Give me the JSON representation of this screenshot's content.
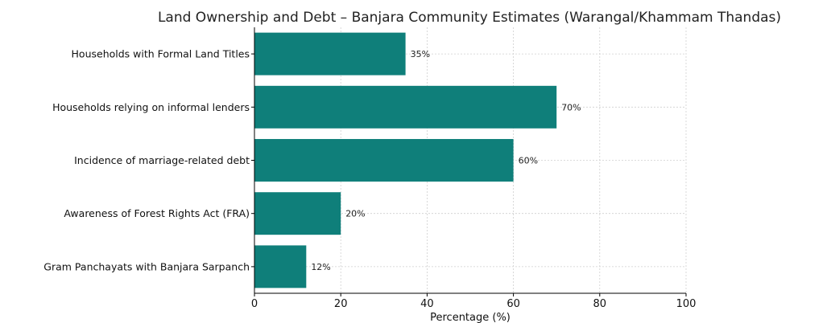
{
  "chart_data": {
    "type": "bar",
    "orientation": "horizontal",
    "title": "Land Ownership and Debt – Banjara Community Estimates (Warangal/Khammam Thandas)",
    "xlabel": "Percentage (%)",
    "ylabel": "",
    "xlim": [
      0,
      100
    ],
    "x_ticks": [
      0,
      20,
      40,
      60,
      80,
      100
    ],
    "grid": true,
    "bar_color": "#0f7f7a",
    "categories": [
      "Households with Formal Land Titles",
      "Households relying on informal lenders",
      "Incidence of marriage-related debt",
      "Awareness of Forest Rights Act (FRA)",
      "Gram Panchayats with Banjara Sarpanch"
    ],
    "values": [
      35,
      70,
      60,
      20,
      12
    ],
    "data_labels": [
      "35%",
      "70%",
      "60%",
      "20%",
      "12%"
    ]
  }
}
